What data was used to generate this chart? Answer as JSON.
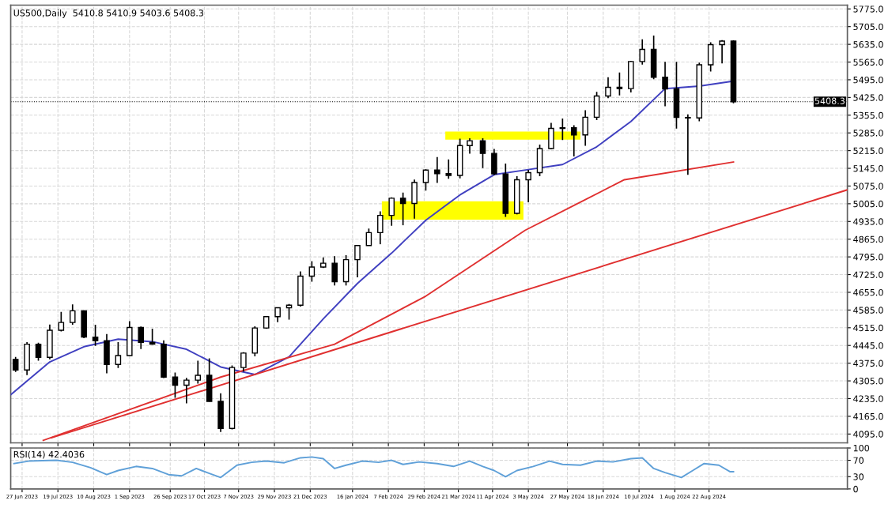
{
  "chart_data": [
    {
      "type": "candlestick",
      "title": "US500,Daily  5410.8 5410.9 5403.6 5408.3",
      "tick_labels": "y",
      "grid": true,
      "legend": false,
      "xlim": [
        "2023-06-20",
        "2024-11-15"
      ],
      "xticks": [
        {
          "value": "2023-06-27",
          "label": null
        },
        {
          "value": "2023-07-19",
          "label": null
        },
        {
          "value": "2023-08-10",
          "label": null
        },
        {
          "value": "2023-09-01",
          "label": null
        },
        {
          "value": "2023-09-26",
          "label": null
        },
        {
          "value": "2023-10-17",
          "label": null
        },
        {
          "value": "2023-11-07",
          "label": null
        },
        {
          "value": "2023-11-29",
          "label": null
        },
        {
          "value": "2023-12-21",
          "label": null
        },
        {
          "value": "2024-01-16",
          "label": null
        },
        {
          "value": "2024-02-07",
          "label": null
        },
        {
          "value": "2024-02-29",
          "label": null
        },
        {
          "value": "2024-03-21",
          "label": null
        },
        {
          "value": "2024-04-11",
          "label": null
        },
        {
          "value": "2024-05-03",
          "label": null
        },
        {
          "value": "2024-05-27",
          "label": null
        },
        {
          "value": "2024-06-18",
          "label": null
        },
        {
          "value": "2024-07-10",
          "label": null
        },
        {
          "value": "2024-08-01",
          "label": null
        },
        {
          "value": "2024-08-22",
          "label": null
        }
      ],
      "ylim": [
        4060,
        5790
      ],
      "yticks": [
        {
          "value": 4095,
          "label": "4095.0"
        },
        {
          "value": 4165,
          "label": "4165.0"
        },
        {
          "value": 4235,
          "label": "4235.0"
        },
        {
          "value": 4305,
          "label": "4305.0"
        },
        {
          "value": 4375,
          "label": "4375.0"
        },
        {
          "value": 4445,
          "label": "4445.0"
        },
        {
          "value": 4515,
          "label": "4515.0"
        },
        {
          "value": 4585,
          "label": "4585.0"
        },
        {
          "value": 4655,
          "label": "4655.0"
        },
        {
          "value": 4725,
          "label": "4725.0"
        },
        {
          "value": 4795,
          "label": "4795.0"
        },
        {
          "value": 4865,
          "label": "4865.0"
        },
        {
          "value": 4935,
          "label": "4935.0"
        },
        {
          "value": 5005,
          "label": "5005.0"
        },
        {
          "value": 5075,
          "label": "5075.0"
        },
        {
          "value": 5145,
          "label": "5145.0"
        },
        {
          "value": 5215,
          "label": "5215.0"
        },
        {
          "value": 5285,
          "label": "5285.0"
        },
        {
          "value": 5355,
          "label": "5355.0"
        },
        {
          "value": 5425,
          "label": "5425.0"
        },
        {
          "value": 5495,
          "label": "5495.0"
        },
        {
          "value": 5565,
          "label": "5565.0"
        },
        {
          "value": 5635,
          "label": "5635.0"
        },
        {
          "value": 5705,
          "label": "5705.0"
        },
        {
          "value": 5775,
          "label": "5775.0"
        }
      ],
      "ref_lines": [
        {
          "axis": "y",
          "value": 5408.3,
          "label": "5408.3",
          "color": "#000000",
          "line_style": "dotted"
        }
      ],
      "x": [
        "2023-06-23",
        "2023-06-30",
        "2023-07-07",
        "2023-07-14",
        "2023-07-21",
        "2023-07-28",
        "2023-08-04",
        "2023-08-11",
        "2023-08-18",
        "2023-08-25",
        "2023-09-01",
        "2023-09-08",
        "2023-09-15",
        "2023-09-22",
        "2023-09-29",
        "2023-10-06",
        "2023-10-13",
        "2023-10-20",
        "2023-10-27",
        "2023-11-03",
        "2023-11-10",
        "2023-11-17",
        "2023-11-24",
        "2023-12-01",
        "2023-12-08",
        "2023-12-15",
        "2023-12-22",
        "2023-12-29",
        "2024-01-05",
        "2024-01-12",
        "2024-01-19",
        "2024-01-26",
        "2024-02-02",
        "2024-02-09",
        "2024-02-16",
        "2024-02-23",
        "2024-03-01",
        "2024-03-08",
        "2024-03-15",
        "2024-03-22",
        "2024-03-28",
        "2024-04-05",
        "2024-04-12",
        "2024-04-19",
        "2024-04-26",
        "2024-05-03",
        "2024-05-10",
        "2024-05-17",
        "2024-05-24",
        "2024-05-31",
        "2024-06-07",
        "2024-06-14",
        "2024-06-21",
        "2024-06-28",
        "2024-07-05",
        "2024-07-12",
        "2024-07-19",
        "2024-07-26",
        "2024-08-02",
        "2024-08-09",
        "2024-08-16",
        "2024-08-23",
        "2024-08-30",
        "2024-09-06"
      ],
      "ohlc": [
        [
          4390,
          4400,
          4340,
          4348
        ],
        [
          4348,
          4458,
          4328,
          4450
        ],
        [
          4450,
          4456,
          4385,
          4398
        ],
        [
          4398,
          4528,
          4390,
          4505
        ],
        [
          4505,
          4578,
          4500,
          4536
        ],
        [
          4536,
          4607,
          4527,
          4582
        ],
        [
          4582,
          4584,
          4474,
          4478
        ],
        [
          4478,
          4527,
          4443,
          4464
        ],
        [
          4464,
          4490,
          4335,
          4370
        ],
        [
          4370,
          4458,
          4356,
          4405
        ],
        [
          4405,
          4541,
          4404,
          4516
        ],
        [
          4516,
          4520,
          4431,
          4457
        ],
        [
          4457,
          4511,
          4448,
          4450
        ],
        [
          4450,
          4465,
          4316,
          4320
        ],
        [
          4320,
          4338,
          4238,
          4288
        ],
        [
          4288,
          4317,
          4216,
          4308
        ],
        [
          4308,
          4385,
          4294,
          4327
        ],
        [
          4327,
          4394,
          4223,
          4224
        ],
        [
          4224,
          4256,
          4103,
          4117
        ],
        [
          4117,
          4366,
          4113,
          4358
        ],
        [
          4358,
          4418,
          4342,
          4415
        ],
        [
          4415,
          4521,
          4402,
          4514
        ],
        [
          4514,
          4560,
          4511,
          4559
        ],
        [
          4559,
          4595,
          4537,
          4594
        ],
        [
          4594,
          4609,
          4547,
          4604
        ],
        [
          4604,
          4738,
          4599,
          4719
        ],
        [
          4719,
          4778,
          4697,
          4755
        ],
        [
          4755,
          4793,
          4751,
          4770
        ],
        [
          4770,
          4798,
          4682,
          4697
        ],
        [
          4697,
          4802,
          4682,
          4784
        ],
        [
          4784,
          4842,
          4714,
          4840
        ],
        [
          4840,
          4907,
          4840,
          4891
        ],
        [
          4891,
          4975,
          4845,
          4959
        ],
        [
          4959,
          5030,
          4918,
          5027
        ],
        [
          5027,
          5049,
          4920,
          5006
        ],
        [
          5006,
          5101,
          4946,
          5089
        ],
        [
          5089,
          5141,
          5057,
          5138
        ],
        [
          5138,
          5190,
          5087,
          5124
        ],
        [
          5124,
          5180,
          5104,
          5117
        ],
        [
          5117,
          5262,
          5105,
          5235
        ],
        [
          5235,
          5264,
          5203,
          5254
        ],
        [
          5254,
          5264,
          5146,
          5204
        ],
        [
          5204,
          5222,
          5118,
          5123
        ],
        [
          5123,
          5164,
          4953,
          4967
        ],
        [
          4967,
          5114,
          4963,
          5100
        ],
        [
          5100,
          5139,
          5011,
          5128
        ],
        [
          5128,
          5239,
          5114,
          5223
        ],
        [
          5223,
          5325,
          5220,
          5303
        ],
        [
          5303,
          5342,
          5257,
          5305
        ],
        [
          5305,
          5315,
          5192,
          5277
        ],
        [
          5277,
          5375,
          5234,
          5347
        ],
        [
          5347,
          5447,
          5336,
          5431
        ],
        [
          5431,
          5505,
          5422,
          5465
        ],
        [
          5465,
          5524,
          5433,
          5460
        ],
        [
          5460,
          5570,
          5445,
          5567
        ],
        [
          5567,
          5655,
          5555,
          5615
        ],
        [
          5615,
          5670,
          5497,
          5505
        ],
        [
          5505,
          5566,
          5390,
          5459
        ],
        [
          5459,
          5566,
          5302,
          5346
        ],
        [
          5346,
          5358,
          5119,
          5344
        ],
        [
          5344,
          5563,
          5331,
          5554
        ],
        [
          5554,
          5643,
          5528,
          5634
        ],
        [
          5634,
          5652,
          5560,
          5648
        ],
        [
          5648,
          5651,
          5402,
          5408
        ]
      ],
      "series": [
        {
          "type": "line",
          "color": "#ffff00",
          "x": [
            "2024-03-13",
            "2024-06-04"
          ],
          "values": [
            null,
            null
          ],
          "lower": [
            5258,
            5258
          ],
          "upper": [
            5290,
            5290
          ]
        },
        {
          "type": "line",
          "color": "#ffff00",
          "x": [
            "2024-02-03",
            "2024-04-30"
          ],
          "values": [
            null,
            null
          ],
          "lower": [
            4942,
            4942
          ],
          "upper": [
            5015,
            5015
          ]
        },
        {
          "type": "line",
          "color": "#4040c0",
          "x": [
            "2023-06-20",
            "2023-07-14",
            "2023-08-04",
            "2023-08-25",
            "2023-09-15",
            "2023-10-06",
            "2023-10-27",
            "2023-11-17",
            "2023-12-08",
            "2023-12-29",
            "2024-01-19",
            "2024-02-09",
            "2024-03-01",
            "2024-03-22",
            "2024-04-12",
            "2024-05-03",
            "2024-05-24",
            "2024-06-14",
            "2024-07-05",
            "2024-07-26",
            "2024-08-16",
            "2024-09-06"
          ],
          "values": [
            4250,
            4380,
            4440,
            4470,
            4460,
            4430,
            4360,
            4330,
            4400,
            4550,
            4690,
            4810,
            4940,
            5040,
            5120,
            5140,
            5160,
            5230,
            5330,
            5460,
            5470,
            5490
          ]
        },
        {
          "type": "line",
          "color": "#e03030",
          "x": [
            "2023-07-10",
            "2023-10-27",
            "2024-01-05",
            "2024-03-01",
            "2024-05-01",
            "2024-07-01",
            "2024-09-06"
          ],
          "values": [
            4070,
            4320,
            4450,
            4640,
            4900,
            5100,
            5170
          ]
        },
        {
          "type": "line",
          "color": "#e03030",
          "x": [
            "2023-07-15",
            "2024-11-15"
          ],
          "values": [
            4080,
            5060
          ]
        }
      ]
    },
    {
      "type": "line",
      "title": "RSI(14) 42.4036",
      "grid": true,
      "legend": false,
      "xlim": [
        "2023-06-20",
        "2024-11-15"
      ],
      "xticks": [
        {
          "value": "2023-06-27",
          "label": "27 Jun 2023"
        },
        {
          "value": "2023-07-19",
          "label": "19 Jul 2023"
        },
        {
          "value": "2023-08-10",
          "label": "10 Aug 2023"
        },
        {
          "value": "2023-09-01",
          "label": "1 Sep 2023"
        },
        {
          "value": "2023-09-26",
          "label": "26 Sep 2023"
        },
        {
          "value": "2023-10-17",
          "label": "17 Oct 2023"
        },
        {
          "value": "2023-11-07",
          "label": "7 Nov 2023"
        },
        {
          "value": "2023-11-29",
          "label": "29 Nov 2023"
        },
        {
          "value": "2023-12-21",
          "label": "21 Dec 2023"
        },
        {
          "value": "2024-01-16",
          "label": "16 Jan 2024"
        },
        {
          "value": "2024-02-07",
          "label": "7 Feb 2024"
        },
        {
          "value": "2024-02-29",
          "label": "29 Feb 2024"
        },
        {
          "value": "2024-03-21",
          "label": "21 Mar 2024"
        },
        {
          "value": "2024-04-11",
          "label": "11 Apr 2024"
        },
        {
          "value": "2024-05-03",
          "label": "3 May 2024"
        },
        {
          "value": "2024-05-27",
          "label": "27 May 2024"
        },
        {
          "value": "2024-06-18",
          "label": "18 Jun 2024"
        },
        {
          "value": "2024-07-10",
          "label": "10 Jul 2024"
        },
        {
          "value": "2024-08-01",
          "label": "1 Aug 2024"
        },
        {
          "value": "2024-08-22",
          "label": "22 Aug 2024"
        }
      ],
      "ylim": [
        0,
        100
      ],
      "yticks": [
        0,
        30,
        70,
        100
      ],
      "series": [
        {
          "color": "#5fa0d8",
          "x": [
            "2023-06-22",
            "2023-07-01",
            "2023-07-18",
            "2023-07-28",
            "2023-08-08",
            "2023-08-18",
            "2023-08-25",
            "2023-09-05",
            "2023-09-15",
            "2023-09-25",
            "2023-10-03",
            "2023-10-12",
            "2023-10-20",
            "2023-10-27",
            "2023-11-06",
            "2023-11-15",
            "2023-11-24",
            "2023-12-05",
            "2023-12-15",
            "2023-12-22",
            "2023-12-29",
            "2024-01-05",
            "2024-01-12",
            "2024-01-22",
            "2024-02-01",
            "2024-02-09",
            "2024-02-16",
            "2024-02-26",
            "2024-03-08",
            "2024-03-18",
            "2024-03-28",
            "2024-04-05",
            "2024-04-12",
            "2024-04-19",
            "2024-04-26",
            "2024-05-06",
            "2024-05-16",
            "2024-05-24",
            "2024-06-04",
            "2024-06-14",
            "2024-06-24",
            "2024-07-05",
            "2024-07-12",
            "2024-07-19",
            "2024-07-26",
            "2024-08-05",
            "2024-08-12",
            "2024-08-19",
            "2024-08-28",
            "2024-09-04",
            "2024-09-06"
          ],
          "values": [
            62,
            68,
            70,
            65,
            52,
            35,
            45,
            55,
            50,
            35,
            32,
            50,
            38,
            28,
            58,
            65,
            68,
            64,
            76,
            78,
            74,
            50,
            58,
            68,
            65,
            70,
            60,
            66,
            62,
            55,
            68,
            55,
            45,
            30,
            45,
            55,
            68,
            60,
            58,
            68,
            66,
            74,
            76,
            50,
            40,
            28,
            45,
            62,
            58,
            42,
            42
          ]
        }
      ]
    }
  ]
}
